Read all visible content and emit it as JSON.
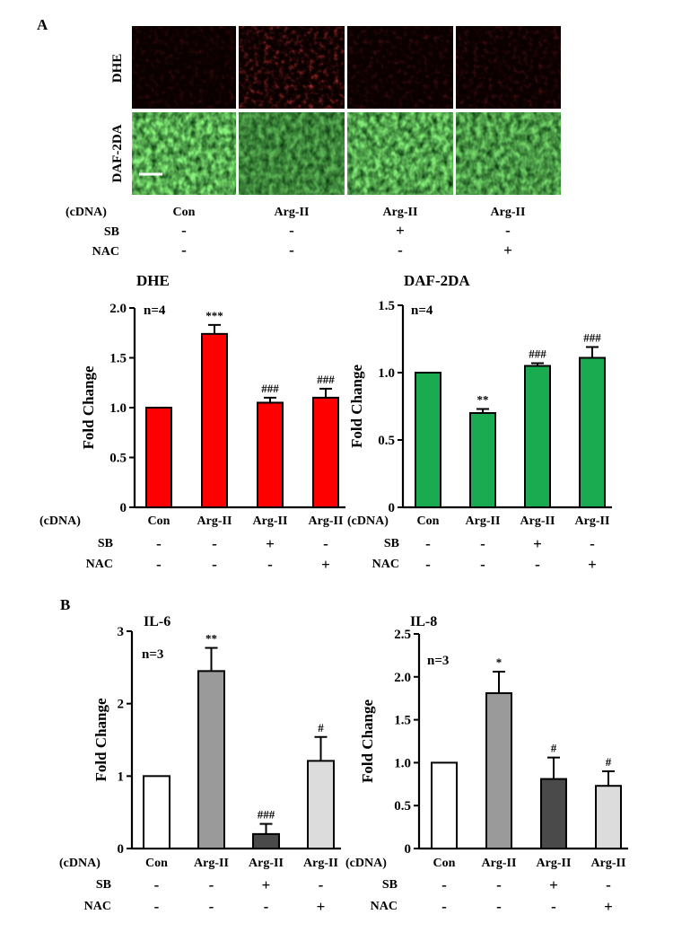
{
  "panel_a": {
    "label": "A",
    "micrographs": {
      "rows": [
        "DHE",
        "DAF-2DA"
      ],
      "row_colors": [
        "#e8131b",
        "#18a84a"
      ],
      "cdna_label": "(cDNA)",
      "columns": [
        "Con",
        "Arg-II",
        "Arg-II",
        "Arg-II"
      ],
      "sb_label": "SB",
      "sb": [
        "-",
        "-",
        "+",
        "-"
      ],
      "nac_label": "NAC",
      "nac": [
        "-",
        "-",
        "-",
        "+"
      ]
    }
  },
  "panel_b": {
    "label": "B"
  },
  "conditions": {
    "cdna_label": "(cDNA)",
    "sb_label": "SB",
    "nac_label": "NAC",
    "categories": [
      "Con",
      "Arg-II",
      "Arg-II",
      "Arg-II"
    ],
    "sb": [
      "-",
      "-",
      "+",
      "-"
    ],
    "nac": [
      "-",
      "-",
      "-",
      "+"
    ]
  },
  "chart_data": [
    {
      "id": "dhe",
      "type": "bar",
      "title": "DHE",
      "title_color": "#e8131b",
      "n_label": "n=4",
      "ylabel": "Fold Change",
      "ylim": [
        0,
        2.0
      ],
      "yticks": [
        "0",
        "0.5",
        "1.0",
        "1.5",
        "2.0"
      ],
      "ytick_values": [
        0,
        0.5,
        1.0,
        1.5,
        2.0
      ],
      "categories": [
        "Con",
        "Arg-II",
        "Arg-II",
        "Arg-II"
      ],
      "values": [
        1.0,
        1.74,
        1.05,
        1.1
      ],
      "errors": [
        0,
        0.09,
        0.05,
        0.09
      ],
      "significance": [
        "",
        "***",
        "###",
        "###"
      ],
      "sig_color": "#e8131b",
      "bar_colors": [
        "#ff0000",
        "#ff0000",
        "#ff0000",
        "#ff0000"
      ]
    },
    {
      "id": "daf",
      "type": "bar",
      "title": "DAF-2DA",
      "title_color": "#18a84a",
      "n_label": "n=4",
      "ylabel": "Fold Change",
      "ylim": [
        0,
        1.5
      ],
      "yticks": [
        "0",
        "0.5",
        "1.0",
        "1.5"
      ],
      "ytick_values": [
        0,
        0.5,
        1.0,
        1.5
      ],
      "categories": [
        "Con",
        "Arg-II",
        "Arg-II",
        "Arg-II"
      ],
      "values": [
        1.0,
        0.7,
        1.05,
        1.11
      ],
      "errors": [
        0,
        0.03,
        0.02,
        0.08
      ],
      "significance": [
        "",
        "**",
        "###",
        "###"
      ],
      "sig_color": "#18a84a",
      "bar_colors": [
        "#1aaa50",
        "#1aaa50",
        "#1aaa50",
        "#1aaa50"
      ]
    },
    {
      "id": "il6",
      "type": "bar",
      "title": "IL-6",
      "title_color": "#000000",
      "n_label": "n=3",
      "ylabel": "Fold Change",
      "ylim": [
        0,
        3
      ],
      "yticks": [
        "0",
        "1",
        "2",
        "3"
      ],
      "ytick_values": [
        0,
        1,
        2,
        3
      ],
      "categories": [
        "Con",
        "Arg-II",
        "Arg-II",
        "Arg-II"
      ],
      "values": [
        1.0,
        2.45,
        0.2,
        1.21
      ],
      "errors": [
        0,
        0.32,
        0.14,
        0.33
      ],
      "significance": [
        "",
        "**",
        "###",
        "#"
      ],
      "sig_color": "#000000",
      "bar_colors": [
        "#ffffff",
        "#9a9a9a",
        "#4a4a4a",
        "#dcdcdc"
      ]
    },
    {
      "id": "il8",
      "type": "bar",
      "title": "IL-8",
      "title_color": "#000000",
      "n_label": "n=3",
      "ylabel": "Fold Change",
      "ylim": [
        0,
        2.5
      ],
      "yticks": [
        "0",
        "0.5",
        "1.0",
        "1.5",
        "2.0",
        "2.5"
      ],
      "ytick_values": [
        0,
        0.5,
        1.0,
        1.5,
        2.0,
        2.5
      ],
      "categories": [
        "Con",
        "Arg-II",
        "Arg-II",
        "Arg-II"
      ],
      "values": [
        1.0,
        1.81,
        0.81,
        0.73
      ],
      "errors": [
        0,
        0.25,
        0.25,
        0.17
      ],
      "significance": [
        "",
        "*",
        "#",
        "#"
      ],
      "sig_color": "#000000",
      "bar_colors": [
        "#ffffff",
        "#9a9a9a",
        "#4a4a4a",
        "#dcdcdc"
      ]
    }
  ]
}
